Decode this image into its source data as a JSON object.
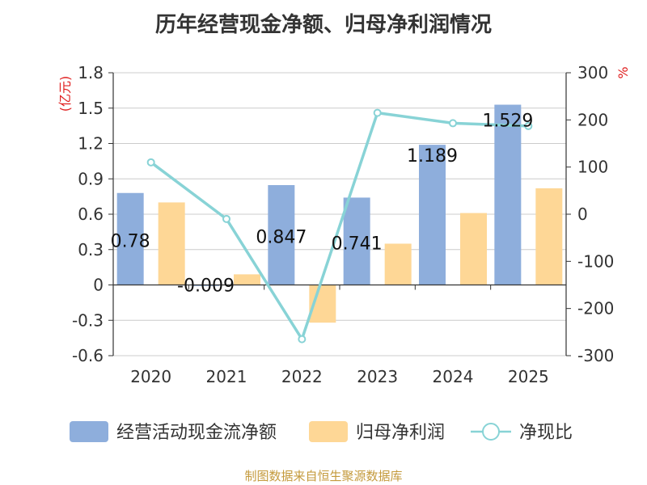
{
  "title": "历年经营现金净额、归母净利润情况",
  "source": "制图数据来自恒生聚源数据库",
  "chart_data": {
    "type": "bar",
    "categories": [
      "2020",
      "2021",
      "2022",
      "2023",
      "2024",
      "2025"
    ],
    "series": [
      {
        "name": "经营活动现金流净额",
        "kind": "bar",
        "axis": "left",
        "color": "#8eaedc",
        "values": [
          0.78,
          -0.009,
          0.847,
          0.741,
          1.189,
          1.529
        ],
        "labels": [
          "0.78",
          "-0.009",
          "0.847",
          "0.741",
          "1.189",
          "1.529"
        ]
      },
      {
        "name": "归母净利润",
        "kind": "bar",
        "axis": "left",
        "color": "#fed796",
        "values": [
          0.7,
          0.09,
          -0.32,
          0.35,
          0.61,
          0.82
        ]
      },
      {
        "name": "净现比",
        "kind": "line",
        "axis": "right",
        "color": "#88d3d6",
        "values": [
          110,
          -10,
          -265,
          215,
          193,
          187
        ]
      }
    ],
    "y_left": {
      "label": "(亿元)",
      "min": -0.6,
      "max": 1.8,
      "ticks": [
        -0.6,
        -0.3,
        0,
        0.3,
        0.6,
        0.9,
        1.2,
        1.5,
        1.8
      ],
      "tick_labels": [
        "-0.6",
        "-0.3",
        "0",
        "0.3",
        "0.6",
        "0.9",
        "1.2",
        "1.5",
        "1.8"
      ]
    },
    "y_right": {
      "label": "%",
      "min": -300,
      "max": 300,
      "ticks": [
        -300,
        -200,
        -100,
        0,
        100,
        200,
        300
      ],
      "tick_labels": [
        "-300",
        "-200",
        "-100",
        "0",
        "100",
        "200",
        "300"
      ]
    },
    "grid": true,
    "legend_position": "bottom"
  }
}
